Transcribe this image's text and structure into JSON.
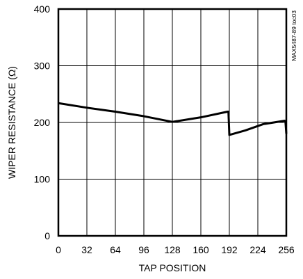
{
  "chart_data": {
    "type": "line",
    "title": "",
    "xlabel": "TAP POSITION",
    "ylabel": "WIPER RESISTANCE (Ω)",
    "xlim": [
      0,
      256
    ],
    "ylim": [
      0,
      400
    ],
    "xticks": [
      0,
      32,
      64,
      96,
      128,
      160,
      192,
      224,
      256
    ],
    "yticks": [
      0,
      100,
      200,
      300,
      400
    ],
    "grid": true,
    "legend": "none",
    "annotation": "MAX5487-89 toc03",
    "series": [
      {
        "x": [
          0,
          32,
          64,
          96,
          128,
          160,
          190,
          191,
          192,
          210,
          230,
          250,
          254,
          255,
          256
        ],
        "y": [
          234,
          226,
          219,
          211,
          201,
          209,
          219,
          219,
          178,
          186,
          197,
          202,
          203,
          202,
          180
        ],
        "color": "#000000"
      }
    ]
  }
}
